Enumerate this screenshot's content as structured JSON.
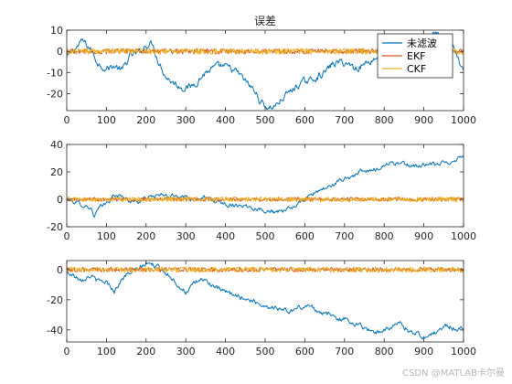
{
  "figure": {
    "watermark": "CSDN @MATLAB卡尔曼"
  },
  "colors": {
    "raw": "#0072BD",
    "ekf": "#D95319",
    "ckf": "#EDB120",
    "axis": "#262626"
  },
  "chart_data": [
    {
      "type": "line",
      "title": "误差",
      "xlim": [
        0,
        1000
      ],
      "ylim": [
        -28,
        10
      ],
      "xticks": [
        0,
        100,
        200,
        300,
        400,
        500,
        600,
        700,
        800,
        900,
        1000
      ],
      "yticks": [
        -20,
        -10,
        0,
        10
      ],
      "legend_position": "top-right",
      "series": [
        {
          "name": "未滤波",
          "color": "#0072BD",
          "points": [
            [
              0,
              -3
            ],
            [
              20,
              1
            ],
            [
              40,
              5
            ],
            [
              60,
              1
            ],
            [
              80,
              -6
            ],
            [
              100,
              -8
            ],
            [
              120,
              -7
            ],
            [
              140,
              -9
            ],
            [
              160,
              -2
            ],
            [
              180,
              -1
            ],
            [
              200,
              3
            ],
            [
              215,
              4
            ],
            [
              230,
              -4
            ],
            [
              250,
              -12
            ],
            [
              270,
              -15
            ],
            [
              290,
              -17
            ],
            [
              310,
              -17
            ],
            [
              330,
              -14
            ],
            [
              350,
              -10
            ],
            [
              370,
              -8
            ],
            [
              390,
              -7
            ],
            [
              410,
              -8
            ],
            [
              430,
              -10
            ],
            [
              450,
              -14
            ],
            [
              470,
              -18
            ],
            [
              490,
              -24
            ],
            [
              510,
              -27
            ],
            [
              530,
              -25
            ],
            [
              550,
              -21
            ],
            [
              570,
              -18
            ],
            [
              590,
              -15
            ],
            [
              610,
              -14
            ],
            [
              630,
              -12
            ],
            [
              650,
              -10
            ],
            [
              670,
              -6
            ],
            [
              690,
              -5
            ],
            [
              710,
              -6
            ],
            [
              730,
              -8
            ],
            [
              750,
              -6
            ],
            [
              770,
              -4
            ],
            [
              790,
              -2
            ],
            [
              810,
              -1
            ],
            [
              830,
              1
            ],
            [
              850,
              0
            ],
            [
              870,
              3
            ],
            [
              890,
              4
            ],
            [
              910,
              6
            ],
            [
              925,
              9
            ],
            [
              940,
              7
            ],
            [
              960,
              3
            ],
            [
              975,
              1
            ],
            [
              990,
              -6
            ],
            [
              1000,
              -8
            ]
          ]
        },
        {
          "name": "EKF",
          "color": "#D95319",
          "points": [],
          "noise_amplitude": 1.2
        },
        {
          "name": "CKF",
          "color": "#EDB120",
          "points": [],
          "noise_amplitude": 1.4
        }
      ]
    },
    {
      "type": "line",
      "xlim": [
        0,
        1000
      ],
      "ylim": [
        -20,
        40
      ],
      "xticks": [
        0,
        100,
        200,
        300,
        400,
        500,
        600,
        700,
        800,
        900,
        1000
      ],
      "yticks": [
        -20,
        0,
        20,
        40
      ],
      "series": [
        {
          "color": "#0072BD",
          "points": [
            [
              0,
              0
            ],
            [
              20,
              -2
            ],
            [
              40,
              -4
            ],
            [
              60,
              -6
            ],
            [
              70,
              -12
            ],
            [
              80,
              -7
            ],
            [
              100,
              -3
            ],
            [
              120,
              3
            ],
            [
              140,
              2
            ],
            [
              160,
              -1
            ],
            [
              180,
              -2
            ],
            [
              200,
              1
            ],
            [
              230,
              3
            ],
            [
              260,
              2
            ],
            [
              290,
              3
            ],
            [
              320,
              0
            ],
            [
              350,
              1
            ],
            [
              380,
              -2
            ],
            [
              410,
              -4
            ],
            [
              440,
              -4
            ],
            [
              470,
              -6
            ],
            [
              500,
              -8
            ],
            [
              520,
              -9
            ],
            [
              540,
              -10
            ],
            [
              560,
              -7
            ],
            [
              580,
              -4
            ],
            [
              600,
              0
            ],
            [
              620,
              4
            ],
            [
              640,
              7
            ],
            [
              660,
              9
            ],
            [
              680,
              12
            ],
            [
              700,
              15
            ],
            [
              720,
              17
            ],
            [
              740,
              20
            ],
            [
              760,
              20
            ],
            [
              780,
              22
            ],
            [
              800,
              25
            ],
            [
              820,
              27
            ],
            [
              840,
              26
            ],
            [
              860,
              25
            ],
            [
              880,
              24
            ],
            [
              900,
              25
            ],
            [
              920,
              25
            ],
            [
              940,
              26
            ],
            [
              960,
              27
            ],
            [
              980,
              29
            ],
            [
              1000,
              32
            ]
          ]
        },
        {
          "color": "#D95319",
          "points": [],
          "noise_amplitude": 1.5
        },
        {
          "color": "#EDB120",
          "points": [],
          "noise_amplitude": 1.8
        }
      ]
    },
    {
      "type": "line",
      "xlim": [
        0,
        1000
      ],
      "ylim": [
        -48,
        6
      ],
      "xticks": [
        0,
        100,
        200,
        300,
        400,
        500,
        600,
        700,
        800,
        900,
        1000
      ],
      "yticks": [
        -40,
        -20,
        0
      ],
      "series": [
        {
          "color": "#0072BD",
          "points": [
            [
              0,
              -2
            ],
            [
              20,
              -4
            ],
            [
              40,
              -6
            ],
            [
              60,
              -4
            ],
            [
              80,
              -8
            ],
            [
              100,
              -8
            ],
            [
              120,
              -14
            ],
            [
              140,
              -6
            ],
            [
              160,
              -2
            ],
            [
              180,
              0
            ],
            [
              200,
              4
            ],
            [
              220,
              3
            ],
            [
              240,
              0
            ],
            [
              260,
              -4
            ],
            [
              280,
              -10
            ],
            [
              300,
              -15
            ],
            [
              320,
              -10
            ],
            [
              340,
              -6
            ],
            [
              360,
              -9
            ],
            [
              380,
              -13
            ],
            [
              400,
              -15
            ],
            [
              420,
              -17
            ],
            [
              440,
              -18
            ],
            [
              460,
              -20
            ],
            [
              480,
              -22
            ],
            [
              500,
              -24
            ],
            [
              520,
              -25
            ],
            [
              540,
              -26
            ],
            [
              560,
              -28
            ],
            [
              580,
              -26
            ],
            [
              600,
              -24
            ],
            [
              620,
              -25
            ],
            [
              640,
              -28
            ],
            [
              660,
              -30
            ],
            [
              680,
              -32
            ],
            [
              700,
              -33
            ],
            [
              720,
              -35
            ],
            [
              740,
              -37
            ],
            [
              760,
              -40
            ],
            [
              780,
              -41
            ],
            [
              800,
              -40
            ],
            [
              820,
              -38
            ],
            [
              840,
              -36
            ],
            [
              860,
              -40
            ],
            [
              880,
              -42
            ],
            [
              900,
              -45
            ],
            [
              920,
              -43
            ],
            [
              940,
              -40
            ],
            [
              960,
              -37
            ],
            [
              980,
              -39
            ],
            [
              1000,
              -40
            ]
          ]
        },
        {
          "color": "#D95319",
          "points": [],
          "noise_amplitude": 1.5
        },
        {
          "color": "#EDB120",
          "points": [],
          "noise_amplitude": 1.8
        }
      ]
    }
  ]
}
